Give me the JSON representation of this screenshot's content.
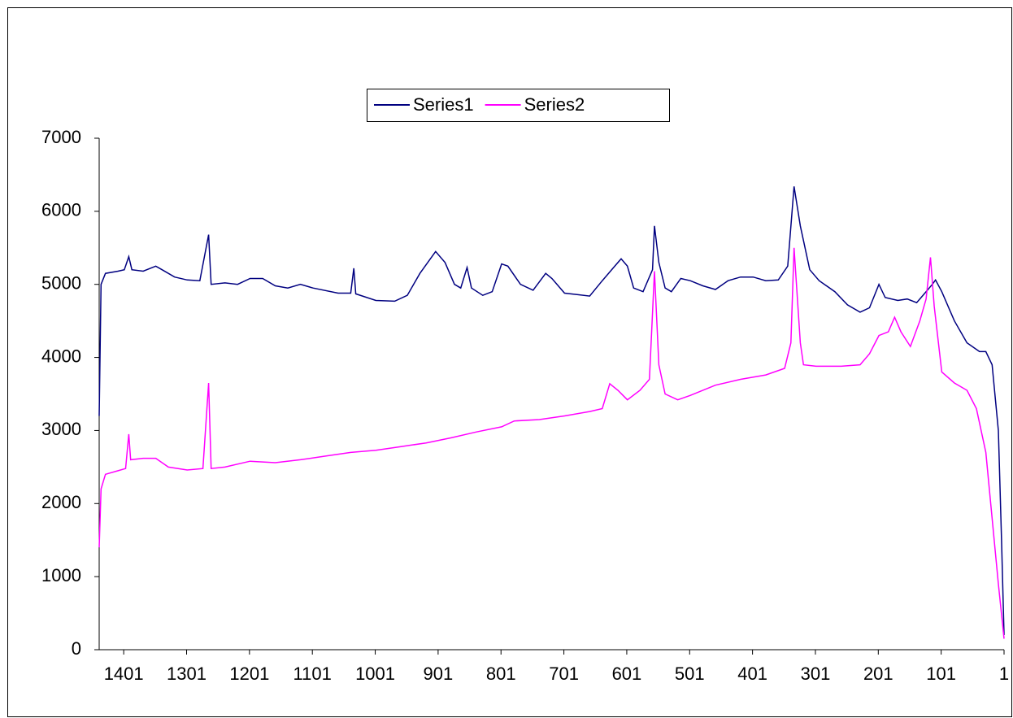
{
  "chart_data": {
    "type": "line",
    "series": [
      {
        "name": "Series1",
        "color": "#000080",
        "x": [
          1440,
          1437,
          1430,
          1410,
          1400,
          1393,
          1388,
          1370,
          1350,
          1340,
          1320,
          1300,
          1280,
          1266,
          1262,
          1240,
          1220,
          1200,
          1180,
          1160,
          1140,
          1120,
          1100,
          1060,
          1040,
          1035,
          1032,
          1000,
          970,
          950,
          930,
          905,
          890,
          875,
          865,
          855,
          848,
          830,
          815,
          800,
          790,
          770,
          750,
          730,
          720,
          700,
          680,
          660,
          640,
          620,
          610,
          600,
          590,
          575,
          560,
          557,
          550,
          540,
          530,
          515,
          500,
          480,
          460,
          440,
          420,
          400,
          380,
          360,
          345,
          335,
          325,
          310,
          295,
          270,
          250,
          230,
          215,
          200,
          190,
          170,
          155,
          140,
          125,
          115,
          110,
          100,
          80,
          60,
          40,
          30,
          20,
          10,
          5,
          1
        ],
        "values": [
          3200,
          5000,
          5150,
          5180,
          5200,
          5380,
          5200,
          5180,
          5250,
          5200,
          5100,
          5060,
          5050,
          5680,
          5000,
          5020,
          5000,
          5080,
          5080,
          4980,
          4950,
          5000,
          4950,
          4880,
          4880,
          5220,
          4870,
          4780,
          4770,
          4850,
          5150,
          5450,
          5300,
          5000,
          4950,
          5230,
          4950,
          4850,
          4900,
          5280,
          5250,
          5000,
          4920,
          5150,
          5080,
          4880,
          4860,
          4840,
          5050,
          5250,
          5350,
          5250,
          4950,
          4900,
          5200,
          5800,
          5300,
          4950,
          4900,
          5080,
          5050,
          4980,
          4930,
          5050,
          5100,
          5100,
          5050,
          5060,
          5250,
          6340,
          5800,
          5200,
          5050,
          4900,
          4720,
          4620,
          4680,
          5000,
          4820,
          4780,
          4800,
          4750,
          4900,
          5000,
          5060,
          4900,
          4500,
          4200,
          4080,
          4080,
          3900,
          3000,
          1500,
          200
        ]
      },
      {
        "name": "Series2",
        "color": "#ff00ff",
        "x": [
          1440,
          1437,
          1430,
          1410,
          1398,
          1393,
          1390,
          1370,
          1350,
          1330,
          1300,
          1275,
          1266,
          1262,
          1240,
          1200,
          1160,
          1120,
          1080,
          1040,
          1000,
          960,
          920,
          880,
          840,
          800,
          780,
          740,
          700,
          660,
          640,
          628,
          615,
          600,
          580,
          565,
          557,
          550,
          540,
          520,
          500,
          460,
          420,
          380,
          350,
          340,
          335,
          325,
          320,
          300,
          260,
          230,
          215,
          200,
          185,
          175,
          165,
          150,
          135,
          125,
          118,
          112,
          100,
          80,
          60,
          45,
          30,
          20,
          10,
          1
        ],
        "values": [
          1400,
          2200,
          2400,
          2450,
          2480,
          2950,
          2600,
          2620,
          2620,
          2500,
          2460,
          2480,
          3650,
          2480,
          2500,
          2580,
          2560,
          2600,
          2650,
          2700,
          2730,
          2780,
          2830,
          2900,
          2980,
          3050,
          3130,
          3150,
          3200,
          3260,
          3300,
          3640,
          3550,
          3420,
          3550,
          3700,
          5180,
          3900,
          3500,
          3420,
          3480,
          3620,
          3700,
          3760,
          3850,
          4200,
          5500,
          4200,
          3900,
          3880,
          3880,
          3900,
          4050,
          4300,
          4350,
          4550,
          4350,
          4150,
          4500,
          4800,
          5370,
          4700,
          3800,
          3650,
          3550,
          3300,
          2700,
          1800,
          900,
          150
        ]
      }
    ],
    "xlim": [
      1440,
      1
    ],
    "xticks": [
      1401,
      1301,
      1201,
      1101,
      1001,
      901,
      801,
      701,
      601,
      501,
      401,
      301,
      201,
      101,
      1
    ],
    "ylim": [
      0,
      7000
    ],
    "yticks": [
      0,
      1000,
      2000,
      3000,
      4000,
      5000,
      6000,
      7000
    ],
    "grid": false,
    "legend": "top"
  }
}
